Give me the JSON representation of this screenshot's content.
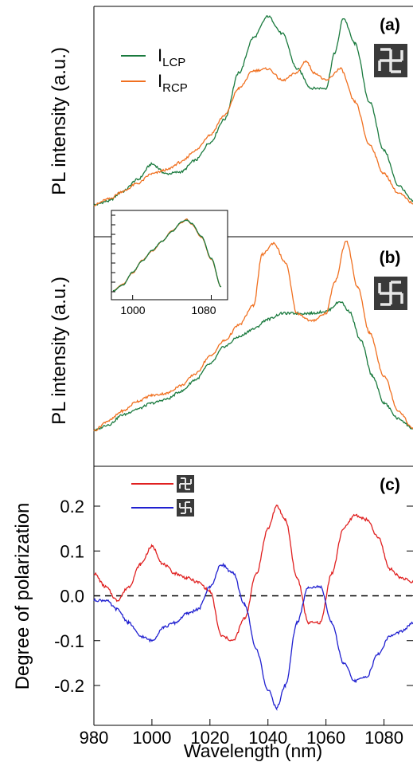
{
  "colors": {
    "lcp": "#1a7a3e",
    "rcp": "#f07020",
    "structure_a": "#e02020",
    "structure_b": "#2020d0",
    "axis": "#000000",
    "zero_line": "#000000"
  },
  "icons": {
    "structure_a": "left-handed-gammadion-icon",
    "structure_b": "right-handed-gammadion-icon"
  },
  "chart_data": [
    {
      "type": "line",
      "panel_label": "(a)",
      "ylabel": "PL intensity (a.u.)",
      "xlim": [
        980,
        1090
      ],
      "ylim": [
        0,
        1
      ],
      "series": [
        {
          "name": "I_LCP",
          "name_main": "I",
          "name_sub": "LCP",
          "color": "#1a7a3e",
          "x": [
            980,
            985,
            990,
            995,
            1000,
            1005,
            1010,
            1015,
            1020,
            1025,
            1030,
            1035,
            1040,
            1045,
            1050,
            1055,
            1060,
            1063,
            1066,
            1070,
            1075,
            1080,
            1085,
            1090
          ],
          "y": [
            0.02,
            0.04,
            0.09,
            0.15,
            0.23,
            0.18,
            0.19,
            0.25,
            0.34,
            0.46,
            0.7,
            0.88,
            0.99,
            0.9,
            0.72,
            0.62,
            0.62,
            0.8,
            0.98,
            0.85,
            0.55,
            0.3,
            0.12,
            0.04
          ]
        },
        {
          "name": "I_RCP",
          "name_main": "I",
          "name_sub": "RCP",
          "color": "#f07020",
          "x": [
            980,
            985,
            990,
            995,
            1000,
            1005,
            1010,
            1015,
            1020,
            1025,
            1030,
            1035,
            1040,
            1045,
            1050,
            1053,
            1056,
            1060,
            1065,
            1070,
            1075,
            1080,
            1085,
            1090
          ],
          "y": [
            0.02,
            0.05,
            0.09,
            0.13,
            0.18,
            0.2,
            0.24,
            0.3,
            0.38,
            0.48,
            0.62,
            0.71,
            0.72,
            0.66,
            0.7,
            0.76,
            0.7,
            0.66,
            0.72,
            0.55,
            0.33,
            0.18,
            0.08,
            0.03
          ]
        }
      ]
    },
    {
      "type": "line",
      "panel_label": "(b)",
      "ylabel": "PL intensity (a.u.)",
      "xlim": [
        980,
        1090
      ],
      "ylim": [
        0,
        1
      ],
      "series": [
        {
          "name": "I_LCP",
          "color": "#1a7a3e",
          "x": [
            980,
            985,
            990,
            995,
            1000,
            1005,
            1010,
            1015,
            1020,
            1025,
            1030,
            1035,
            1040,
            1045,
            1050,
            1055,
            1060,
            1065,
            1068,
            1072,
            1076,
            1080,
            1085,
            1090
          ],
          "y": [
            0.02,
            0.05,
            0.1,
            0.13,
            0.16,
            0.18,
            0.22,
            0.28,
            0.36,
            0.45,
            0.5,
            0.54,
            0.59,
            0.62,
            0.62,
            0.62,
            0.63,
            0.68,
            0.63,
            0.48,
            0.3,
            0.16,
            0.08,
            0.03
          ]
        },
        {
          "name": "I_RCP",
          "color": "#f07020",
          "x": [
            980,
            985,
            990,
            995,
            1000,
            1005,
            1010,
            1015,
            1020,
            1025,
            1030,
            1035,
            1038,
            1042,
            1046,
            1050,
            1055,
            1060,
            1063,
            1067,
            1071,
            1075,
            1080,
            1085,
            1090
          ],
          "y": [
            0.02,
            0.07,
            0.12,
            0.17,
            0.2,
            0.21,
            0.25,
            0.31,
            0.4,
            0.48,
            0.56,
            0.66,
            0.92,
            0.98,
            0.88,
            0.62,
            0.58,
            0.62,
            0.78,
            0.99,
            0.75,
            0.52,
            0.3,
            0.12,
            0.03
          ]
        }
      ],
      "inset": {
        "type": "line",
        "xlim": [
          980,
          1095
        ],
        "ylim": [
          0,
          1
        ],
        "x_ticks": [
          "1000",
          "1080"
        ],
        "series": [
          {
            "name": "I_LCP",
            "color": "#1a7a3e",
            "x": [
              980,
              990,
              1000,
              1010,
              1020,
              1030,
              1040,
              1050,
              1055,
              1060,
              1070,
              1080,
              1090
            ],
            "y": [
              0.05,
              0.12,
              0.28,
              0.42,
              0.55,
              0.66,
              0.78,
              0.9,
              0.92,
              0.88,
              0.72,
              0.45,
              0.1
            ]
          },
          {
            "name": "I_RCP",
            "color": "#f07020",
            "x": [
              980,
              990,
              1000,
              1010,
              1020,
              1030,
              1040,
              1050,
              1055,
              1060,
              1070,
              1080,
              1090
            ],
            "y": [
              0.05,
              0.13,
              0.27,
              0.43,
              0.54,
              0.66,
              0.79,
              0.89,
              0.93,
              0.87,
              0.71,
              0.44,
              0.1
            ]
          }
        ]
      }
    },
    {
      "type": "line",
      "panel_label": "(c)",
      "ylabel": "Degree of polarization",
      "xlabel": "Wavelength (nm)",
      "xlim": [
        980,
        1090
      ],
      "ylim": [
        -0.28,
        0.28
      ],
      "x_ticks": [
        980,
        1000,
        1020,
        1040,
        1060,
        1080
      ],
      "y_ticks": [
        -0.2,
        -0.1,
        0.0,
        0.1,
        0.2
      ],
      "y_tick_labels": [
        "-0.2",
        "-0.1",
        "0.0",
        "0.1",
        "0.2"
      ],
      "x_tick_labels": [
        "980",
        "1000",
        "1020",
        "1040",
        "1060",
        "1080"
      ],
      "zero_line": "dashed",
      "series": [
        {
          "name": "structure (a)",
          "color": "#e02020",
          "x": [
            980,
            984,
            988,
            992,
            996,
            1000,
            1004,
            1008,
            1012,
            1016,
            1020,
            1024,
            1028,
            1032,
            1036,
            1040,
            1043,
            1046,
            1050,
            1054,
            1058,
            1062,
            1066,
            1070,
            1074,
            1078,
            1082,
            1086,
            1090
          ],
          "y": [
            0.05,
            0.02,
            -0.01,
            0.02,
            0.07,
            0.11,
            0.07,
            0.05,
            0.04,
            0.03,
            0.01,
            -0.09,
            -0.1,
            -0.05,
            0.05,
            0.15,
            0.2,
            0.17,
            0.04,
            -0.06,
            -0.06,
            0.05,
            0.15,
            0.18,
            0.17,
            0.13,
            0.06,
            0.04,
            0.03
          ]
        },
        {
          "name": "structure (b)",
          "color": "#2020d0",
          "x": [
            980,
            984,
            988,
            992,
            996,
            1000,
            1004,
            1008,
            1012,
            1016,
            1020,
            1024,
            1028,
            1032,
            1036,
            1040,
            1043,
            1046,
            1050,
            1054,
            1058,
            1062,
            1066,
            1070,
            1074,
            1078,
            1082,
            1086,
            1090
          ],
          "y": [
            -0.01,
            -0.01,
            -0.03,
            -0.06,
            -0.09,
            -0.1,
            -0.07,
            -0.06,
            -0.04,
            -0.03,
            0.02,
            0.07,
            0.05,
            -0.02,
            -0.12,
            -0.21,
            -0.25,
            -0.2,
            -0.06,
            0.02,
            0.02,
            -0.06,
            -0.15,
            -0.19,
            -0.18,
            -0.13,
            -0.09,
            -0.08,
            -0.06
          ]
        }
      ]
    }
  ]
}
